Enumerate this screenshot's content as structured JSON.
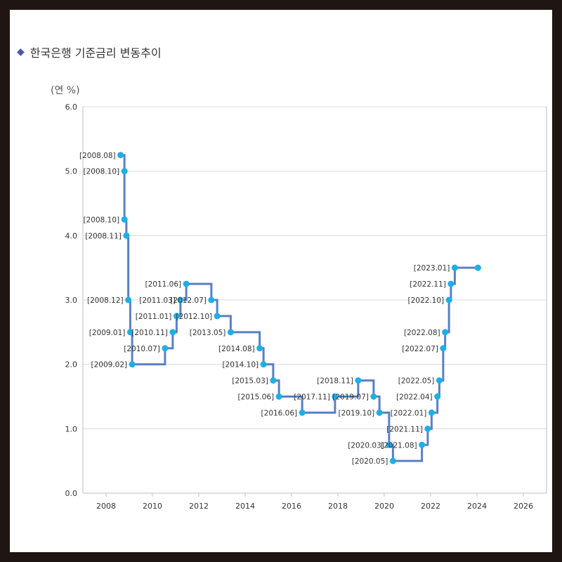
{
  "title": "한국은행 기준금리 변동추이",
  "colors": {
    "line": "#5b7fc4",
    "point": "#1eaee8",
    "grid": "#d9d9d9",
    "frame": "#1f1614"
  },
  "chart_data": {
    "type": "line",
    "step": true,
    "title": "한국은행 기준금리 변동추이",
    "ylabel": "(연 %)",
    "xlabel": "",
    "xlim": [
      2007,
      2027
    ],
    "ylim": [
      0,
      6
    ],
    "x_ticks": [
      "2008",
      "2010",
      "2012",
      "2014",
      "2016",
      "2018",
      "2020",
      "2022",
      "2024",
      "2026"
    ],
    "y_ticks": [
      "0.0",
      "1.0",
      "2.0",
      "3.0",
      "4.0",
      "5.0",
      "6.0"
    ],
    "grid": "horizontal",
    "series": [
      {
        "points": [
          {
            "date": "2008.08",
            "value": 5.25,
            "label": "[2008.08]"
          },
          {
            "date": "2008.10",
            "value": 5.0,
            "label": "[2008.10]"
          },
          {
            "date": "2008.10",
            "value": 4.25,
            "label": "[2008.10]"
          },
          {
            "date": "2008.11",
            "value": 4.0,
            "label": "[2008.11]"
          },
          {
            "date": "2008.12",
            "value": 3.0,
            "label": "[2008.12]"
          },
          {
            "date": "2009.01",
            "value": 2.5,
            "label": "[2009.01]"
          },
          {
            "date": "2009.02",
            "value": 2.0,
            "label": "[2009.02]"
          },
          {
            "date": "2010.07",
            "value": 2.25,
            "label": "[2010.07]"
          },
          {
            "date": "2010.11",
            "value": 2.5,
            "label": "[2010.11]"
          },
          {
            "date": "2011.01",
            "value": 2.75,
            "label": "[2011.01]"
          },
          {
            "date": "2011.03",
            "value": 3.0,
            "label": "[2011.03]"
          },
          {
            "date": "2011.06",
            "value": 3.25,
            "label": "[2011.06]"
          },
          {
            "date": "2012.07",
            "value": 3.0,
            "label": "[2012.07]"
          },
          {
            "date": "2012.10",
            "value": 2.75,
            "label": "[2012.10]"
          },
          {
            "date": "2013.05",
            "value": 2.5,
            "label": "[2013.05]"
          },
          {
            "date": "2014.08",
            "value": 2.25,
            "label": "[2014.08]"
          },
          {
            "date": "2014.10",
            "value": 2.0,
            "label": "[2014.10]"
          },
          {
            "date": "2015.03",
            "value": 1.75,
            "label": "[2015.03]"
          },
          {
            "date": "2015.06",
            "value": 1.5,
            "label": "[2015.06]"
          },
          {
            "date": "2016.06",
            "value": 1.25,
            "label": "[2016.06]"
          },
          {
            "date": "2017.11",
            "value": 1.5,
            "label": "[2017.11]"
          },
          {
            "date": "2018.11",
            "value": 1.75,
            "label": "[2018.11]"
          },
          {
            "date": "2019.07",
            "value": 1.5,
            "label": "[2019.07]"
          },
          {
            "date": "2019.10",
            "value": 1.25,
            "label": "[2019.10]"
          },
          {
            "date": "2020.03",
            "value": 0.75,
            "label": "[2020.03]"
          },
          {
            "date": "2020.05",
            "value": 0.5,
            "label": "[2020.05]"
          },
          {
            "date": "2021.08",
            "value": 0.75,
            "label": "[2021.08]"
          },
          {
            "date": "2021.11",
            "value": 1.0,
            "label": "[2021.11]"
          },
          {
            "date": "2022.01",
            "value": 1.25,
            "label": "[2022.01]"
          },
          {
            "date": "2022.04",
            "value": 1.5,
            "label": "[2022.04]"
          },
          {
            "date": "2022.05",
            "value": 1.75,
            "label": "[2022.05]"
          },
          {
            "date": "2022.07",
            "value": 2.25,
            "label": "[2022.07]"
          },
          {
            "date": "2022.08",
            "value": 2.5,
            "label": "[2022.08]"
          },
          {
            "date": "2022.10",
            "value": 3.0,
            "label": "[2022.10]"
          },
          {
            "date": "2022.11",
            "value": 3.25,
            "label": "[2022.11]"
          },
          {
            "date": "2023.01",
            "value": 3.5,
            "label": "[2023.01]"
          },
          {
            "date": "2024.01",
            "value": 3.5,
            "label": ""
          }
        ]
      }
    ]
  }
}
